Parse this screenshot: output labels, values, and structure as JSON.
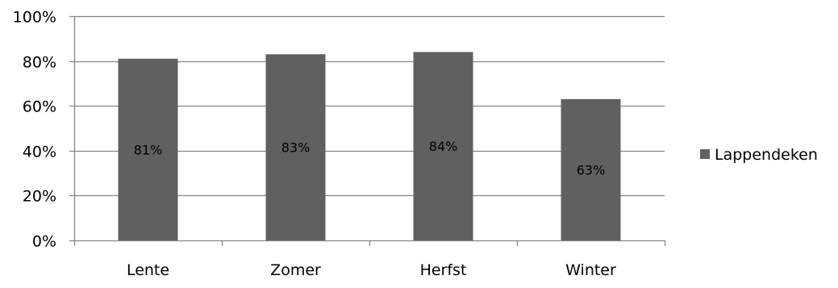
{
  "chart_data": {
    "type": "bar",
    "categories": [
      "Lente",
      "Zomer",
      "Herfst",
      "Winter"
    ],
    "series": [
      {
        "name": "Lappendeken",
        "values": [
          81,
          83,
          84,
          63
        ],
        "color": "#606060"
      }
    ],
    "data_labels": [
      "81%",
      "83%",
      "84%",
      "63%"
    ],
    "ylim": [
      0,
      100
    ],
    "y_ticks": [
      0,
      20,
      40,
      60,
      80,
      100
    ],
    "y_tick_labels": [
      "0%",
      "20%",
      "40%",
      "60%",
      "80%",
      "100%"
    ],
    "grid": true,
    "grid_color": "#868686",
    "legend_position": "right",
    "title": "",
    "xlabel": "",
    "ylabel": ""
  }
}
